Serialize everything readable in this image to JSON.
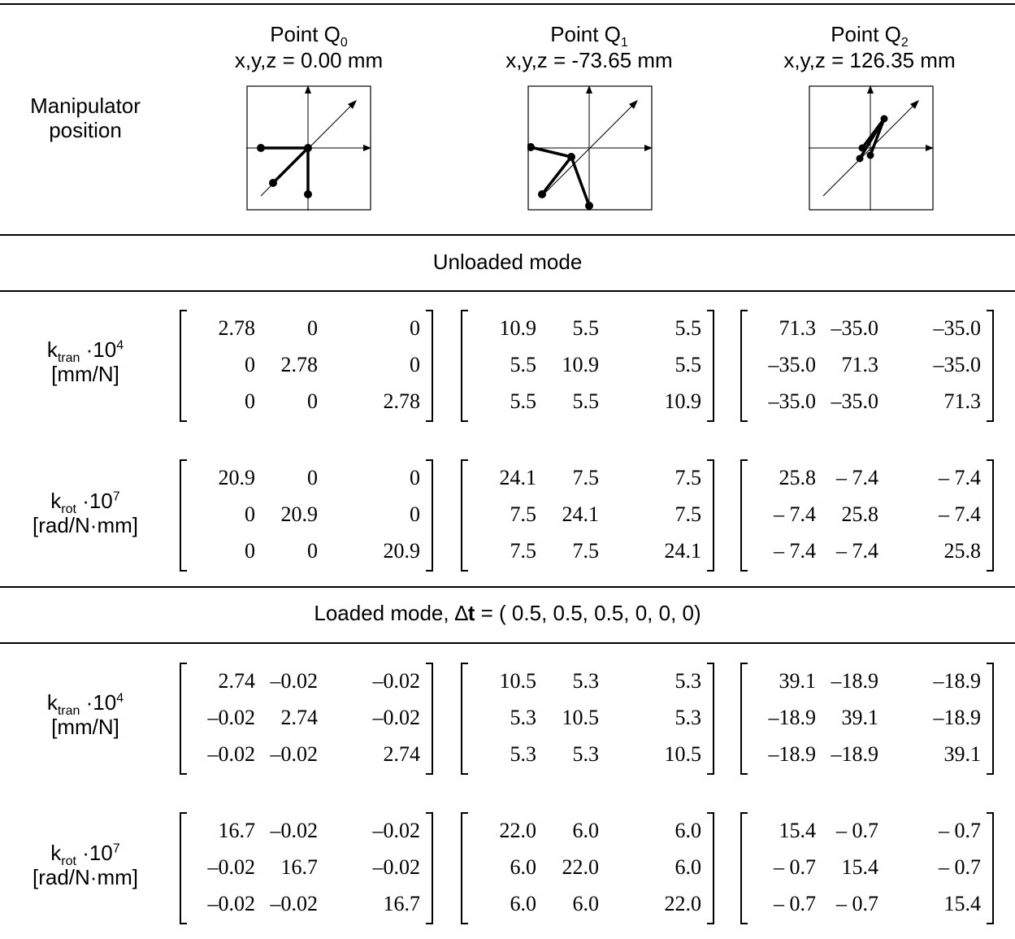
{
  "header": {
    "row_label": [
      "Manipulator",
      "position"
    ],
    "points": [
      {
        "name": "Point Q",
        "sub": "0",
        "coords": "x,y,z = 0.00 mm"
      },
      {
        "name": "Point Q",
        "sub": "1",
        "coords": "x,y,z = -73.65 mm"
      },
      {
        "name": "Point Q",
        "sub": "2",
        "coords": "x,y,z = 126.35 mm"
      }
    ]
  },
  "sections": {
    "unloaded": "Unloaded mode",
    "loaded_prefix": "Loaded mode, ",
    "loaded_delta": "∆",
    "loaded_bold": "t",
    "loaded_suffix": " = ( 0.5, 0.5, 0.5, 0, 0, 0)"
  },
  "labels": {
    "ktran_k": "k",
    "ktran_sub": "tran",
    "ktran_mult": " ·10",
    "ktran_exp": "4",
    "ktran_units": "[mm/N]",
    "krot_k": "k",
    "krot_sub": "rot",
    "krot_mult": " ·10",
    "krot_exp": "7",
    "krot_units": "[rad/N·mm]"
  },
  "matrices": {
    "unloaded_tran": [
      [
        [
          "2.78",
          "0",
          "0"
        ],
        [
          "0",
          "2.78",
          "0"
        ],
        [
          "0",
          "0",
          "2.78"
        ]
      ],
      [
        [
          "10.9",
          "5.5",
          "5.5"
        ],
        [
          "5.5",
          "10.9",
          "5.5"
        ],
        [
          "5.5",
          "5.5",
          "10.9"
        ]
      ],
      [
        [
          "71.3",
          "–35.0",
          "–35.0"
        ],
        [
          "–35.0",
          "71.3",
          "–35.0"
        ],
        [
          "–35.0",
          "–35.0",
          "71.3"
        ]
      ]
    ],
    "unloaded_rot": [
      [
        [
          "20.9",
          "0",
          "0"
        ],
        [
          "0",
          "20.9",
          "0"
        ],
        [
          "0",
          "0",
          "20.9"
        ]
      ],
      [
        [
          "24.1",
          "7.5",
          "7.5"
        ],
        [
          "7.5",
          "24.1",
          "7.5"
        ],
        [
          "7.5",
          "7.5",
          "24.1"
        ]
      ],
      [
        [
          "25.8",
          "– 7.4",
          "– 7.4"
        ],
        [
          "– 7.4",
          "25.8",
          "– 7.4"
        ],
        [
          "– 7.4",
          "– 7.4",
          "25.8"
        ]
      ]
    ],
    "loaded_tran": [
      [
        [
          "2.74",
          "–0.02",
          "–0.02"
        ],
        [
          "–0.02",
          "2.74",
          "–0.02"
        ],
        [
          "–0.02",
          "–0.02",
          "2.74"
        ]
      ],
      [
        [
          "10.5",
          "5.3",
          "5.3"
        ],
        [
          "5.3",
          "10.5",
          "5.3"
        ],
        [
          "5.3",
          "5.3",
          "10.5"
        ]
      ],
      [
        [
          "39.1",
          "–18.9",
          "–18.9"
        ],
        [
          "–18.9",
          "39.1",
          "–18.9"
        ],
        [
          "–18.9",
          "–18.9",
          "39.1"
        ]
      ]
    ],
    "loaded_rot": [
      [
        [
          "16.7",
          "–0.02",
          "–0.02"
        ],
        [
          "–0.02",
          "16.7",
          "–0.02"
        ],
        [
          "–0.02",
          "–0.02",
          "16.7"
        ]
      ],
      [
        [
          "22.0",
          "6.0",
          "6.0"
        ],
        [
          "6.0",
          "22.0",
          "6.0"
        ],
        [
          "6.0",
          "6.0",
          "22.0"
        ]
      ],
      [
        [
          "15.4",
          "– 0.7",
          "– 0.7"
        ],
        [
          "– 0.7",
          "15.4",
          "– 0.7"
        ],
        [
          "– 0.7",
          "– 0.7",
          "15.4"
        ]
      ]
    ]
  }
}
